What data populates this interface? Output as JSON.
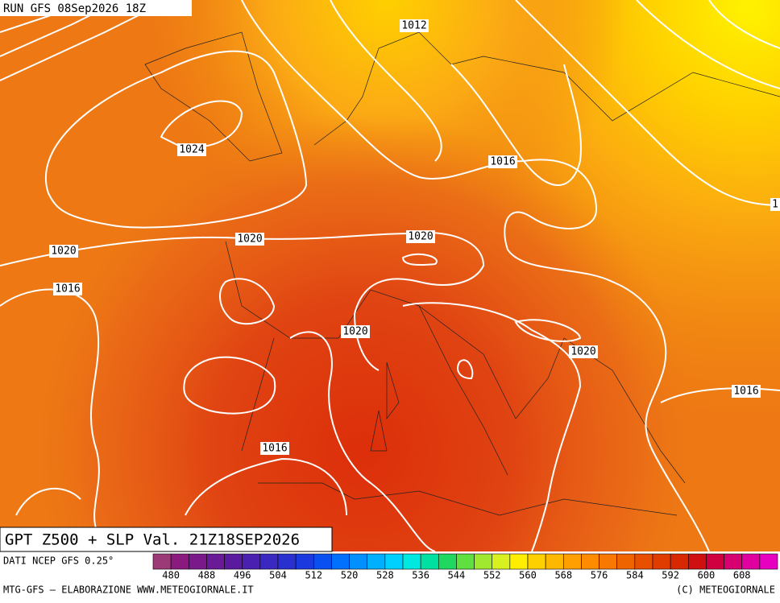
{
  "header": {
    "run": "RUN GFS 08Sep2026 18Z"
  },
  "isobar_labels": [
    "1012",
    "1024",
    "1016",
    "1020",
    "1020",
    "1020",
    "1016",
    "1020",
    "1020",
    "1016",
    "1016",
    "1"
  ],
  "title": "GPT Z500 + SLP Val. 21Z18SEP2026",
  "scale": {
    "caption": "DATI NCEP GFS 0.25°",
    "labels": [
      480,
      488,
      496,
      504,
      512,
      520,
      528,
      536,
      544,
      552,
      560,
      568,
      576,
      584,
      592,
      600,
      608
    ],
    "colors": [
      "#9c3a78",
      "#8b1a7e",
      "#7a1a8a",
      "#6a1a96",
      "#5a1aa0",
      "#4a20b0",
      "#3a28c0",
      "#2a30d0",
      "#1a3ae0",
      "#0a50f0",
      "#0070ff",
      "#0090ff",
      "#00b0ff",
      "#00d0ff",
      "#00e8e0",
      "#00e0a0",
      "#20d860",
      "#60e040",
      "#a0e830",
      "#d8f020",
      "#ffee00",
      "#ffd000",
      "#ffb800",
      "#ffa000",
      "#ff8c00",
      "#f87800",
      "#f06400",
      "#e85000",
      "#e03c00",
      "#d82800",
      "#d01010",
      "#d00040",
      "#d80070",
      "#e000a0",
      "#e800c0"
    ]
  },
  "footer": {
    "left": "MTG-GFS — ELABORAZIONE WWW.METEOGIORNALE.IT",
    "right": "(C) METEOGIORNALE"
  }
}
